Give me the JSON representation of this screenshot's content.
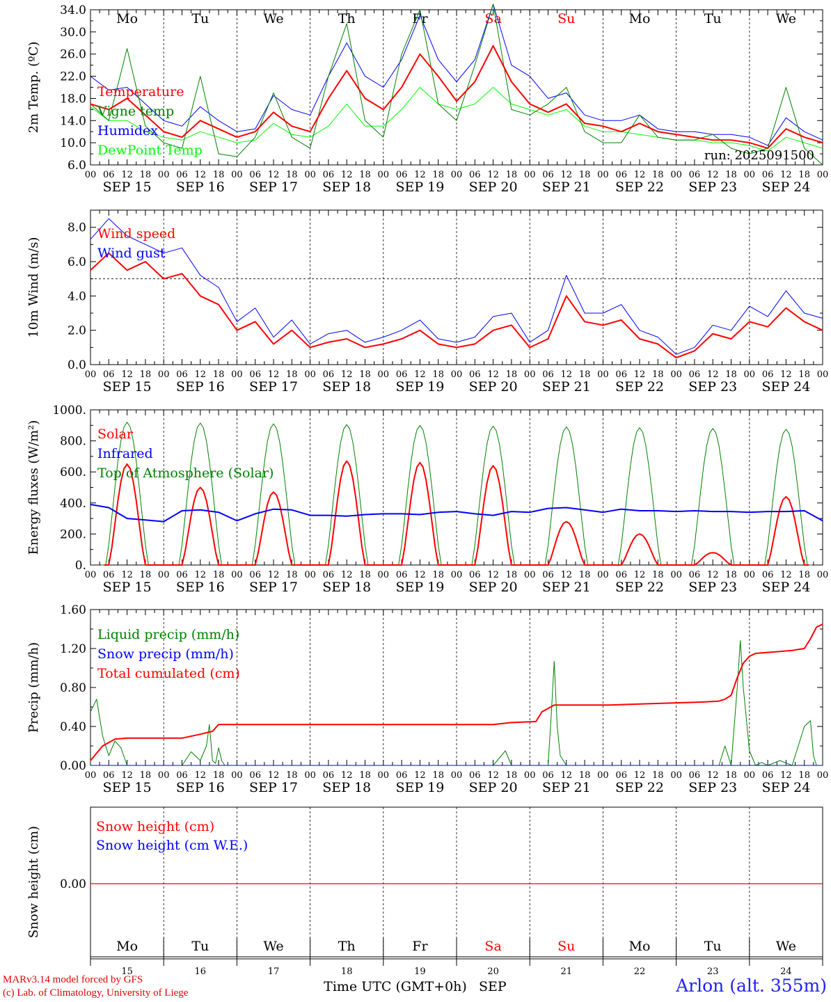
{
  "days": {
    "weekday_labels": [
      "Mo",
      "Tu",
      "We",
      "Th",
      "Fr",
      "Sa",
      "Su",
      "Mo",
      "Tu",
      "We"
    ],
    "weekday_colors": [
      "#000000",
      "#000000",
      "#000000",
      "#000000",
      "#000000",
      "#ff0000",
      "#ff0000",
      "#000000",
      "#000000",
      "#000000"
    ],
    "date_labels": [
      "SEP 15",
      "SEP 16",
      "SEP 17",
      "SEP 18",
      "SEP 19",
      "SEP 20",
      "SEP 21",
      "SEP 22",
      "SEP 23",
      "SEP 24"
    ],
    "hour_labels": [
      "00",
      "06",
      "12",
      "18"
    ],
    "day_numbers": [
      "15",
      "16",
      "17",
      "18",
      "19",
      "20",
      "21",
      "22",
      "23",
      "24"
    ]
  },
  "footer": {
    "credit_line1": "MARv3.14 model forced by GFS",
    "credit_line2": "(c) Lab. of Climatology, University of Liege",
    "xlabel": "Time UTC (GMT+0h)",
    "month": "SEP",
    "station": "Arlon (alt. 355m)"
  },
  "chart_data": [
    {
      "type": "line",
      "ylabel": "2m Temp. (ºC)",
      "ylim": [
        6.0,
        34.0
      ],
      "yticks": [
        "6.0",
        "10.0",
        "14.0",
        "18.0",
        "22.0",
        "26.0",
        "30.0",
        "34.0"
      ],
      "ytick_values": [
        6,
        10,
        14,
        18,
        22,
        26,
        30,
        34
      ],
      "annotation": "run: 2025091500",
      "x_hours": [
        0,
        6,
        12,
        18,
        24,
        30,
        36,
        42,
        48,
        54,
        60,
        66,
        72,
        78,
        84,
        90,
        96,
        102,
        108,
        114,
        120,
        126,
        132,
        138,
        144,
        150,
        156,
        162,
        168,
        174,
        180,
        186,
        192,
        198,
        204,
        210,
        216,
        222,
        228,
        234,
        240
      ],
      "series": [
        {
          "name": "Temperature",
          "color": "#ff0000",
          "width": 2,
          "values": [
            17.0,
            16.0,
            18.0,
            15.0,
            12.0,
            11.0,
            14.0,
            12.5,
            11.0,
            12.0,
            15.5,
            13.0,
            12.0,
            18.0,
            23.0,
            18.0,
            16.0,
            20.0,
            26.0,
            22.0,
            17.5,
            21.0,
            27.5,
            21.0,
            17.0,
            15.5,
            17.0,
            13.5,
            13.0,
            12.0,
            13.5,
            12.0,
            11.5,
            11.0,
            10.5,
            10.5,
            10.0,
            9.0,
            12.5,
            11.0,
            10.0
          ]
        },
        {
          "name": "Vigne temp",
          "color": "#008000",
          "width": 1,
          "values": [
            17.0,
            14.0,
            27.0,
            13.0,
            10.0,
            9.0,
            22.0,
            8.0,
            7.5,
            11.0,
            19.0,
            11.0,
            9.0,
            22.0,
            31.5,
            14.0,
            11.0,
            26.0,
            34.0,
            17.0,
            14.0,
            24.0,
            35.0,
            16.0,
            15.0,
            17.0,
            20.0,
            12.0,
            10.0,
            10.0,
            15.0,
            11.0,
            10.5,
            10.5,
            11.5,
            9.0,
            8.0,
            9.0,
            20.0,
            9.0,
            6.0
          ]
        },
        {
          "name": "Humidex",
          "color": "#0000ff",
          "width": 1,
          "values": [
            22.0,
            19.5,
            20.0,
            17.0,
            14.0,
            13.0,
            16.5,
            14.0,
            12.0,
            12.5,
            18.5,
            16.0,
            15.0,
            22.0,
            28.0,
            22.0,
            20.0,
            25.0,
            33.0,
            25.0,
            21.0,
            25.0,
            35.0,
            24.0,
            22.0,
            18.0,
            19.0,
            15.0,
            14.0,
            14.0,
            15.0,
            12.5,
            12.0,
            12.0,
            11.5,
            11.5,
            11.0,
            9.5,
            14.5,
            12.0,
            10.5
          ]
        },
        {
          "name": "DewPoint Temp",
          "color": "#00ff00",
          "width": 1,
          "values": [
            16.5,
            14.0,
            14.0,
            12.0,
            11.0,
            10.5,
            12.0,
            11.0,
            10.0,
            10.5,
            13.5,
            11.5,
            11.0,
            13.0,
            17.0,
            13.0,
            13.0,
            16.0,
            20.0,
            17.0,
            16.0,
            17.0,
            20.0,
            17.0,
            16.0,
            15.0,
            16.0,
            13.0,
            12.0,
            12.0,
            11.5,
            11.0,
            10.5,
            10.5,
            10.0,
            10.0,
            9.5,
            8.5,
            11.0,
            10.0,
            9.0
          ]
        }
      ]
    },
    {
      "type": "line",
      "ylabel": "10m Wind (m/s)",
      "ylim": [
        0.0,
        9.0
      ],
      "yticks": [
        "0.0",
        "2.0",
        "4.0",
        "6.0",
        "8.0"
      ],
      "ytick_values": [
        0,
        2,
        4,
        6,
        8
      ],
      "reference_line": 5.0,
      "x_hours": [
        0,
        6,
        12,
        18,
        24,
        30,
        36,
        42,
        48,
        54,
        60,
        66,
        72,
        78,
        84,
        90,
        96,
        102,
        108,
        114,
        120,
        126,
        132,
        138,
        144,
        150,
        156,
        162,
        168,
        174,
        180,
        186,
        192,
        198,
        204,
        210,
        216,
        222,
        228,
        234,
        240
      ],
      "series": [
        {
          "name": "Wind speed",
          "color": "#ff0000",
          "width": 2,
          "values": [
            5.5,
            6.5,
            5.5,
            6.0,
            5.0,
            5.3,
            4.0,
            3.5,
            2.0,
            2.5,
            1.2,
            2.0,
            1.0,
            1.3,
            1.5,
            1.0,
            1.2,
            1.5,
            2.0,
            1.2,
            1.0,
            1.2,
            2.0,
            2.3,
            1.0,
            1.5,
            4.0,
            2.5,
            2.3,
            2.6,
            1.5,
            1.2,
            0.4,
            0.8,
            1.8,
            1.5,
            2.5,
            2.2,
            3.3,
            2.5,
            2.0
          ]
        },
        {
          "name": "Wind gust",
          "color": "#0000ff",
          "width": 1,
          "values": [
            7.3,
            8.5,
            7.5,
            7.0,
            6.5,
            6.8,
            5.2,
            4.5,
            2.5,
            3.3,
            1.6,
            2.6,
            1.2,
            1.8,
            2.0,
            1.3,
            1.6,
            2.0,
            2.6,
            1.5,
            1.3,
            1.6,
            2.8,
            3.0,
            1.3,
            2.0,
            5.2,
            3.0,
            3.0,
            3.5,
            2.0,
            1.6,
            0.6,
            1.0,
            2.3,
            2.0,
            3.4,
            2.8,
            4.3,
            3.0,
            2.7
          ]
        }
      ]
    },
    {
      "type": "line",
      "ylabel": "Energy fluxes (W/m²)",
      "ylim": [
        0,
        1000
      ],
      "yticks": [
        "0.",
        "200.",
        "400.",
        "600.",
        "800.",
        "1000."
      ],
      "ytick_values": [
        0,
        200,
        400,
        600,
        800,
        1000
      ],
      "daily_peak_hour": 12,
      "series": [
        {
          "name": "Top of Atmosphere (Solar)",
          "color": "#008000",
          "width": 1,
          "daily_peaks": [
            920,
            915,
            910,
            905,
            900,
            895,
            890,
            885,
            880,
            875
          ]
        },
        {
          "name": "Solar",
          "color": "#ff0000",
          "width": 2,
          "daily_peaks": [
            650,
            500,
            470,
            670,
            660,
            640,
            280,
            200,
            80,
            440
          ]
        },
        {
          "name": "Infrared",
          "color": "#0000ff",
          "width": 2,
          "x_hours": [
            0,
            6,
            12,
            18,
            24,
            30,
            36,
            42,
            48,
            54,
            60,
            66,
            72,
            78,
            84,
            90,
            96,
            102,
            108,
            114,
            120,
            126,
            132,
            138,
            144,
            150,
            156,
            162,
            168,
            174,
            180,
            186,
            192,
            198,
            204,
            210,
            216,
            222,
            228,
            234,
            240
          ],
          "values": [
            390,
            370,
            300,
            290,
            280,
            350,
            355,
            340,
            285,
            330,
            360,
            355,
            320,
            320,
            315,
            325,
            330,
            330,
            325,
            340,
            345,
            330,
            320,
            345,
            340,
            365,
            370,
            355,
            340,
            360,
            350,
            350,
            345,
            350,
            345,
            345,
            340,
            345,
            345,
            350,
            285
          ]
        }
      ]
    },
    {
      "type": "line",
      "ylabel": "Precip (mm/h)",
      "ylim": [
        0.0,
        1.6
      ],
      "yticks": [
        "0.00",
        "0.40",
        "0.80",
        "1.20",
        "1.60"
      ],
      "ytick_values": [
        0,
        0.4,
        0.8,
        1.2,
        1.6
      ],
      "series": [
        {
          "name": "Liquid precip (mm/h)",
          "color": "#008000",
          "width": 1,
          "x_hours": [
            0,
            2,
            4,
            6,
            8,
            10,
            12,
            14,
            16,
            24,
            30,
            33,
            36,
            38,
            39,
            40,
            41,
            42,
            43,
            44,
            46,
            48,
            132,
            136,
            138,
            140,
            144,
            150,
            151,
            152,
            153,
            154,
            156,
            158,
            160,
            170,
            180,
            190,
            200,
            206,
            208,
            210,
            212,
            213,
            214,
            216,
            218,
            220,
            222,
            226,
            230,
            234,
            236,
            237,
            238,
            240
          ],
          "values": [
            0.55,
            0.68,
            0.3,
            0.1,
            0.25,
            0.18,
            0.0,
            0.0,
            0.0,
            0.0,
            0.0,
            0.14,
            0.05,
            0.2,
            0.42,
            0.05,
            0.02,
            0.18,
            0.05,
            0.0,
            0.0,
            0.0,
            0.0,
            0.15,
            0.0,
            0.0,
            0.0,
            0.0,
            0.5,
            1.07,
            0.4,
            0.1,
            0.0,
            0.0,
            0.0,
            0.0,
            0.0,
            0.0,
            0.0,
            0.0,
            0.2,
            0.0,
            0.8,
            1.28,
            0.8,
            0.15,
            0.0,
            0.03,
            0.0,
            0.05,
            0.0,
            0.4,
            0.46,
            0.1,
            0.0,
            0.0
          ]
        },
        {
          "name": "Snow precip (mm/h)",
          "color": "#0000ff",
          "width": 1,
          "x_hours": [
            0,
            240
          ],
          "values": [
            0,
            0
          ]
        },
        {
          "name": "Total cumulated (cm)",
          "color": "#ff0000",
          "width": 2,
          "x_hours": [
            0,
            4,
            8,
            12,
            30,
            36,
            40,
            42,
            48,
            72,
            96,
            120,
            132,
            138,
            146,
            148,
            152,
            156,
            160,
            170,
            180,
            190,
            200,
            206,
            208,
            210,
            212,
            214,
            216,
            218,
            222,
            226,
            230,
            234,
            236,
            238,
            240
          ],
          "values": [
            0.05,
            0.2,
            0.27,
            0.28,
            0.28,
            0.32,
            0.35,
            0.42,
            0.42,
            0.42,
            0.42,
            0.42,
            0.42,
            0.44,
            0.45,
            0.55,
            0.62,
            0.62,
            0.62,
            0.62,
            0.63,
            0.64,
            0.65,
            0.66,
            0.68,
            0.72,
            0.9,
            1.05,
            1.12,
            1.15,
            1.16,
            1.17,
            1.18,
            1.2,
            1.3,
            1.42,
            1.45
          ]
        }
      ]
    },
    {
      "type": "line",
      "ylabel": "Snow height (cm)",
      "yticks": [
        "0.00"
      ],
      "series": [
        {
          "name": "Snow height (cm)",
          "color": "#ff0000",
          "width": 1,
          "x_hours": [
            0,
            240
          ],
          "values": [
            0,
            0
          ]
        },
        {
          "name": "Snow height (cm W.E.)",
          "color": "#0000ff",
          "width": 1,
          "x_hours": [
            0,
            240
          ],
          "values": [
            0,
            0
          ]
        }
      ]
    }
  ]
}
